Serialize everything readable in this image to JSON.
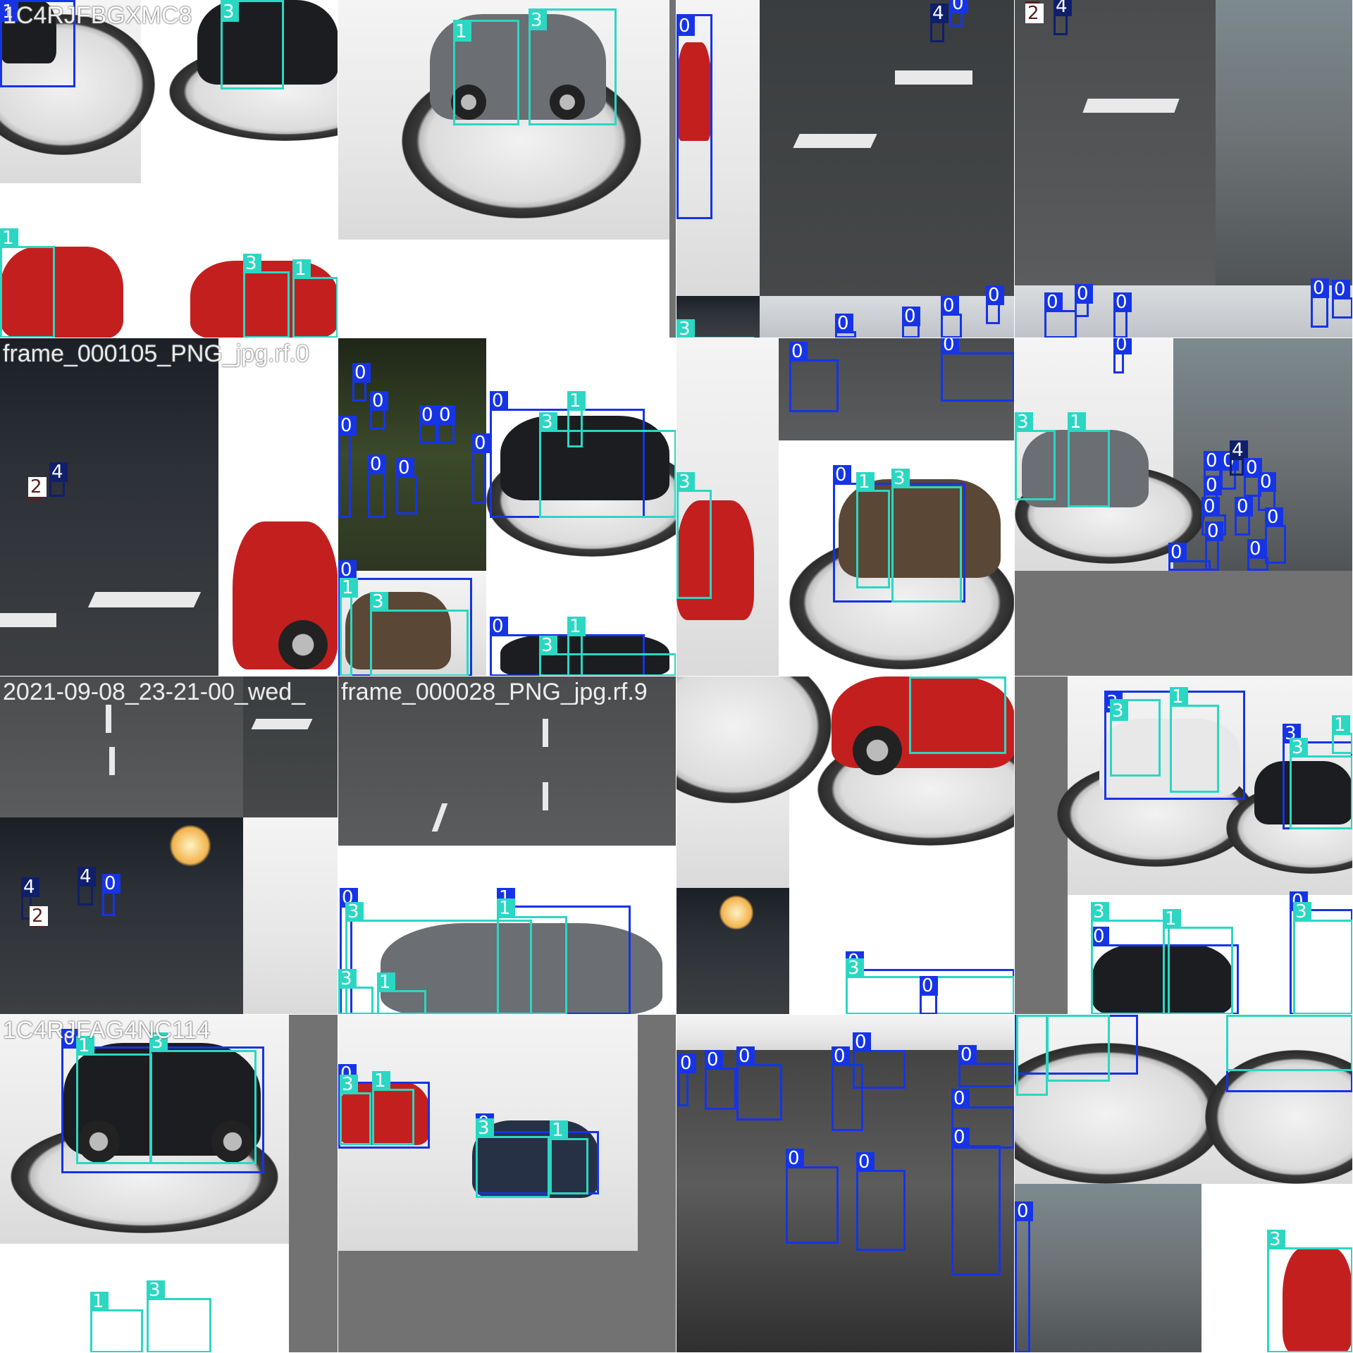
{
  "palette": {
    "class_0": "#1634e6",
    "class_1": "#2bd7c3",
    "class_2": "#5a1f1f",
    "class_3": "#2bd7c3",
    "class_4": "#0f1f6b"
  },
  "tiles": [
    {
      "filename": "1C4RJFBGXMC8"
    },
    {
      "filename": ""
    },
    {
      "filename": ""
    },
    {
      "filename": ""
    },
    {
      "filename": "frame_000105_PNG_jpg.rf.0"
    },
    {
      "filename": ""
    },
    {
      "filename": ""
    },
    {
      "filename": ""
    },
    {
      "filename": "2021-09-08_23-21-00_wed_"
    },
    {
      "filename": "frame_000028_PNG_jpg.rf.9"
    },
    {
      "filename": ""
    },
    {
      "filename": ""
    },
    {
      "filename": "1C4RJFAG4NC114"
    },
    {
      "filename": ""
    },
    {
      "filename": ""
    },
    {
      "filename": ""
    }
  ],
  "class_labels": [
    "0",
    "1",
    "2",
    "3",
    "4"
  ]
}
